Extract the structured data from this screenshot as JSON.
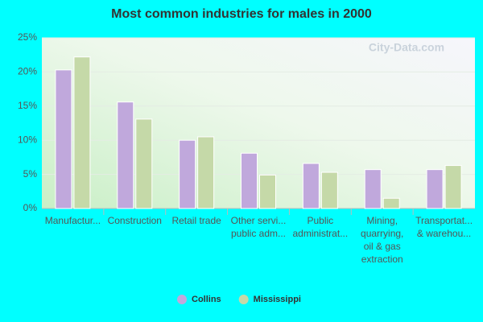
{
  "chart_data": {
    "type": "bar",
    "title": "Most common industries for males in 2000",
    "watermark": "City-Data.com",
    "categories": [
      "Manufactur...",
      "Construction",
      "Retail trade",
      "Other servi...\npublic adm...",
      "Public\nadministrat...",
      "Mining,\nquarrying,\noil & gas\nextraction",
      "Transportat...\n& warehou..."
    ],
    "series": [
      {
        "name": "Collins",
        "color": "#c0a8dc",
        "values": [
          20.3,
          15.6,
          10.0,
          8.1,
          6.6,
          5.7,
          5.7
        ]
      },
      {
        "name": "Mississippi",
        "color": "#c5d9a8",
        "values": [
          22.2,
          13.1,
          10.5,
          4.9,
          5.3,
          1.5,
          6.3
        ]
      }
    ],
    "ylim": [
      0,
      25
    ],
    "yticks": [
      {
        "value": 0,
        "label": "0%"
      },
      {
        "value": 5,
        "label": "5%"
      },
      {
        "value": 10,
        "label": "10%"
      },
      {
        "value": 15,
        "label": "15%"
      },
      {
        "value": 20,
        "label": "20%"
      },
      {
        "value": 25,
        "label": "25%"
      }
    ],
    "grid": true,
    "legend": "bottom"
  }
}
